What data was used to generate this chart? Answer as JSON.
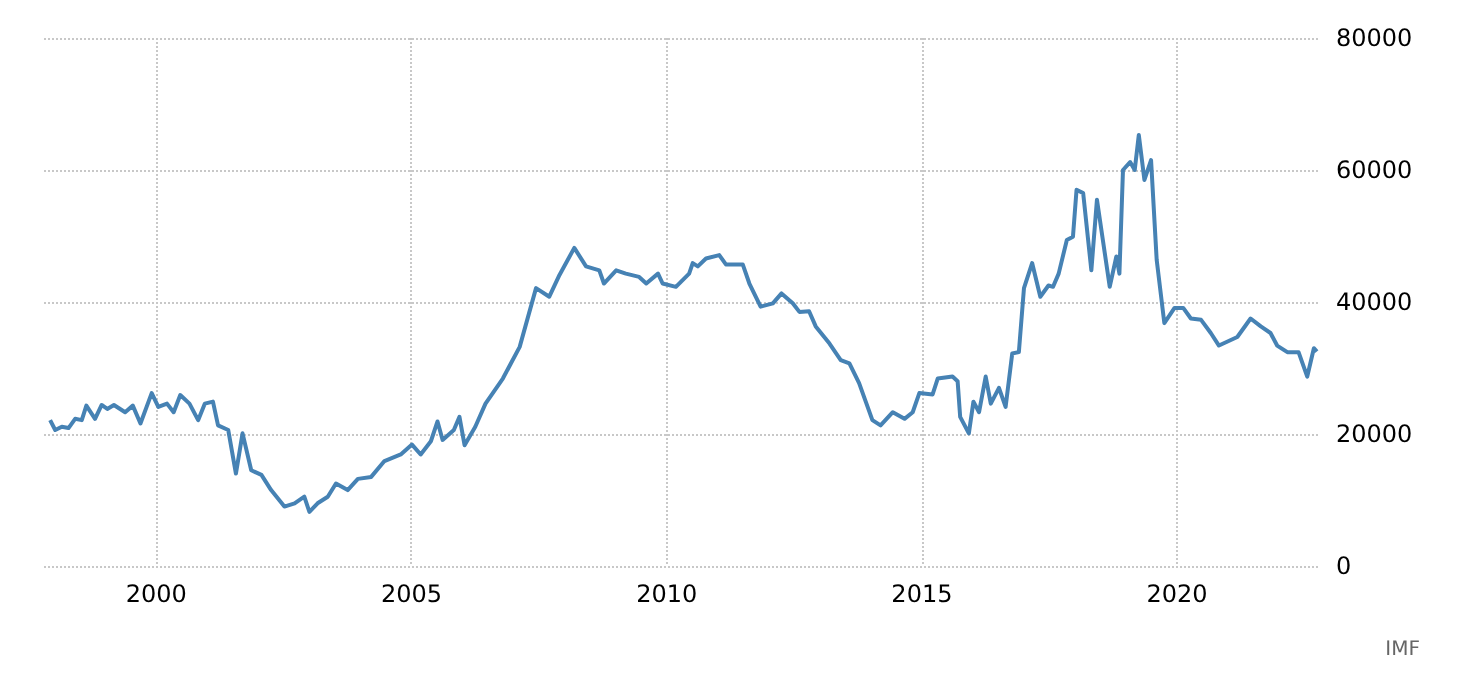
{
  "chart_data": {
    "type": "line",
    "annotations": [
      "IMF"
    ],
    "grid": true,
    "marker": "none",
    "line_style": "solid",
    "xlim": [
      1997.8,
      2022.8
    ],
    "xticks": [
      2000,
      2005,
      2010,
      2015,
      2020
    ],
    "ylim": [
      0,
      80000
    ],
    "yticks": [
      0,
      20000,
      40000,
      60000,
      80000
    ],
    "series": [
      {
        "color": "#4682b4",
        "x": [
          1997.92,
          1998.02,
          1998.15,
          1998.28,
          1998.41,
          1998.54,
          1998.63,
          1998.8,
          1998.93,
          1999.04,
          1999.17,
          1999.39,
          1999.54,
          1999.69,
          1999.91,
          2000.04,
          2000.21,
          2000.34,
          2000.47,
          2000.65,
          2000.82,
          2000.95,
          2001.11,
          2001.21,
          2001.41,
          2001.56,
          2001.69,
          2001.86,
          2002.06,
          2002.25,
          2002.51,
          2002.71,
          2002.9,
          2003.0,
          2003.16,
          2003.36,
          2003.52,
          2003.75,
          2003.95,
          2004.21,
          2004.47,
          2004.79,
          2005.01,
          2005.18,
          2005.38,
          2005.51,
          2005.61,
          2005.83,
          2005.94,
          2006.04,
          2006.25,
          2006.45,
          2006.79,
          2007.12,
          2007.44,
          2007.7,
          2007.9,
          2008.19,
          2008.42,
          2008.68,
          2008.77,
          2009.01,
          2009.2,
          2009.46,
          2009.6,
          2009.83,
          2009.92,
          2010.18,
          2010.44,
          2010.51,
          2010.61,
          2010.77,
          2011.03,
          2011.16,
          2011.49,
          2011.62,
          2011.84,
          2012.08,
          2012.25,
          2012.47,
          2012.6,
          2012.79,
          2012.92,
          2013.19,
          2013.41,
          2013.58,
          2013.77,
          2013.9,
          2014.03,
          2014.19,
          2014.43,
          2014.66,
          2014.82,
          2014.95,
          2015.21,
          2015.31,
          2015.6,
          2015.7,
          2015.75,
          2015.92,
          2016.01,
          2016.12,
          2016.25,
          2016.35,
          2016.51,
          2016.64,
          2016.77,
          2016.9,
          2017.0,
          2017.16,
          2017.32,
          2017.48,
          2017.57,
          2017.68,
          2017.84,
          2017.96,
          2018.03,
          2018.16,
          2018.32,
          2018.43,
          2018.68,
          2018.81,
          2018.87,
          2018.94,
          2019.08,
          2019.17,
          2019.25,
          2019.36,
          2019.49,
          2019.6,
          2019.75,
          2019.95,
          2020.12,
          2020.27,
          2020.47,
          2020.66,
          2020.82,
          2021.18,
          2021.44,
          2021.64,
          2021.83,
          2021.96,
          2022.16,
          2022.38,
          2022.55,
          2022.68,
          2022.74
        ],
        "values": [
          22100,
          20600,
          21100,
          20900,
          22300,
          22100,
          24300,
          22300,
          24400,
          23800,
          24400,
          23300,
          24300,
          21600,
          26200,
          24100,
          24600,
          23300,
          25900,
          24600,
          22100,
          24600,
          24900,
          21300,
          20600,
          14000,
          20100,
          14500,
          13800,
          11500,
          9000,
          9500,
          10500,
          8200,
          9500,
          10500,
          12500,
          11500,
          13200,
          13500,
          15900,
          16900,
          18400,
          16900,
          18900,
          21900,
          19100,
          20600,
          22600,
          18300,
          21100,
          24600,
          28400,
          33200,
          42100,
          40800,
          44100,
          48200,
          45400,
          44800,
          42800,
          44800,
          44300,
          43800,
          42800,
          44300,
          42800,
          42300,
          44300,
          45900,
          45400,
          46600,
          47100,
          45700,
          45700,
          42800,
          39300,
          39800,
          41300,
          39800,
          38500,
          38600,
          36300,
          33700,
          31200,
          30700,
          27700,
          24900,
          22100,
          21300,
          23300,
          22300,
          23300,
          26200,
          26000,
          28400,
          28700,
          28000,
          22600,
          20100,
          24900,
          23300,
          28700,
          24600,
          27000,
          24100,
          32200,
          32400,
          42100,
          45900,
          40800,
          42500,
          42300,
          44300,
          49400,
          49900,
          57000,
          56500,
          44800,
          55500,
          42300,
          46900,
          44300,
          60000,
          61200,
          60000,
          65300,
          58500,
          61500,
          46400,
          36800,
          39100,
          39100,
          37500,
          37300,
          35300,
          33400,
          34700,
          37500,
          36300,
          35300,
          33400,
          32400,
          32400,
          28700,
          33000,
          32500
        ]
      }
    ]
  }
}
